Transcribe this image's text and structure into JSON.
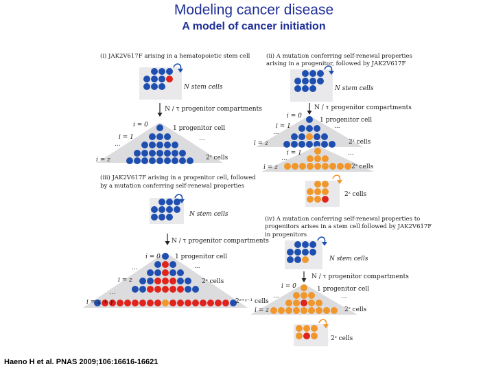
{
  "title": "Modeling cancer disease",
  "subtitle": "A model of cancer initiation",
  "citation": "Haeno H et al. PNAS 2009;106:16616-16621",
  "colors": {
    "title": "#1f2f96",
    "blue": "#1e4fb0",
    "red": "#e0231c",
    "orange": "#f0962a",
    "triangle": "#dcdcde"
  },
  "panels": {
    "p1": {
      "caption": [
        "(i) JAK2V617F arising in a hematopoietic stem cell"
      ],
      "stem_label": "N stem cells",
      "arrow_label": "N / τ  progenitor compartments",
      "i0": "i = 0",
      "i1": "i = 1",
      "iz": "i = z",
      "progenitor": "1 progenitor cell",
      "dots": "...",
      "cells": "2ᶻ cells"
    },
    "p2": {
      "caption": [
        "(ii) A mutation conferring self-renewal properties",
        "arising in a progenitor, followed by JAK2V617F"
      ],
      "stem_label": "N stem cells",
      "arrow_label": "N / τ  progenitor compartments",
      "i0": "i = 0",
      "i1": "i = 1",
      "iz": "i = z",
      "progenitor": "1 progenitor cell",
      "dots": "...",
      "cells": "2ᶻ cells",
      "i0b": "i = 1",
      "izb": "i = z",
      "cells_b": "2ᶻ cells",
      "final_cells": "2ᶻ cells"
    },
    "p3": {
      "caption": [
        "(iii) JAK2V617F arising in a progenitor cell, followed",
        "by a mutation conferring self-renewal properties"
      ],
      "stem_label": "N stem cells",
      "arrow_label": "N / τ  progenitor compartments",
      "i0": "i = 0",
      "iz": "i = z",
      "izg": "i = z + γ",
      "progenitor": "1 progenitor cell",
      "dots": "...",
      "cells": "2ᶻ cells",
      "cells_g": "2ᶻ⁺ᵞ⁻¹ cells"
    },
    "p4": {
      "caption": [
        "(iv) A mutation conferring self-renewal properties to",
        "progenitors arises in a stem cell followed by JAK2V617F",
        "in progenitors"
      ],
      "stem_label": "N stem cells",
      "arrow_label": "N / τ  progenitor compartments",
      "i0": "i = 0",
      "iz": "i = z",
      "progenitor": "1 progenitor cell",
      "dots": "...",
      "cells": "2ᶻ cells",
      "final_cells": "2ᶻ cells"
    }
  }
}
